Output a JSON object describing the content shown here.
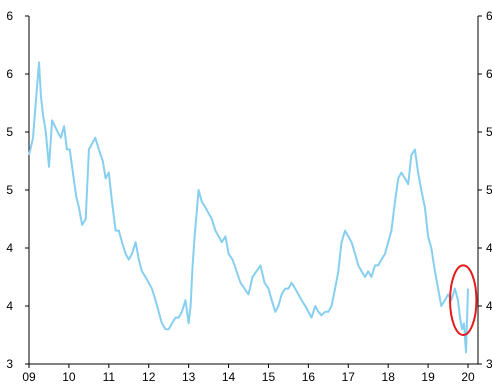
{
  "chart_data": {
    "type": "line",
    "title": "",
    "xlabel": "",
    "ylabel": "",
    "xlim": [
      2009.0,
      2020.25
    ],
    "ylim": [
      3.0,
      6.0
    ],
    "grid": false,
    "legend": "none",
    "x_tick_labels": [
      "09",
      "10",
      "11",
      "12",
      "13",
      "14",
      "15",
      "16",
      "17",
      "18",
      "19",
      "20"
    ],
    "x_tick_values": [
      2009.0,
      2010.0,
      2011.0,
      2012.0,
      2013.0,
      2014.0,
      2015.0,
      2016.0,
      2017.0,
      2018.0,
      2019.0,
      2020.0
    ],
    "y_tick_labels_left": [
      "3",
      "4",
      "4",
      "5",
      "5",
      "6",
      "6"
    ],
    "y_tick_labels_right": [
      "3",
      "4",
      "4",
      "5",
      "5",
      "6",
      "6"
    ],
    "y_tick_values": [
      3.0,
      3.5,
      4.0,
      4.5,
      5.0,
      5.5,
      6.0
    ],
    "series": [
      {
        "color": "#87cff0",
        "x": [
          2009.0,
          2009.1,
          2009.18,
          2009.25,
          2009.3,
          2009.35,
          2009.42,
          2009.5,
          2009.58,
          2009.65,
          2009.72,
          2009.8,
          2009.88,
          2009.95,
          2010.02,
          2010.1,
          2010.18,
          2010.25,
          2010.33,
          2010.42,
          2010.5,
          2010.58,
          2010.66,
          2010.75,
          2010.85,
          2010.92,
          2011.0,
          2011.08,
          2011.17,
          2011.25,
          2011.33,
          2011.42,
          2011.5,
          2011.58,
          2011.67,
          2011.75,
          2011.83,
          2011.92,
          2012.0,
          2012.08,
          2012.17,
          2012.25,
          2012.33,
          2012.42,
          2012.5,
          2012.58,
          2012.67,
          2012.75,
          2012.83,
          2012.92,
          2013.0,
          2013.05,
          2013.1,
          2013.15,
          2013.2,
          2013.25,
          2013.33,
          2013.42,
          2013.5,
          2013.58,
          2013.67,
          2013.75,
          2013.83,
          2013.92,
          2014.0,
          2014.1,
          2014.2,
          2014.3,
          2014.4,
          2014.5,
          2014.6,
          2014.7,
          2014.8,
          2014.9,
          2015.0,
          2015.08,
          2015.17,
          2015.25,
          2015.33,
          2015.42,
          2015.5,
          2015.58,
          2015.67,
          2015.75,
          2015.83,
          2015.92,
          2016.0,
          2016.08,
          2016.17,
          2016.25,
          2016.33,
          2016.42,
          2016.5,
          2016.58,
          2016.67,
          2016.75,
          2016.83,
          2016.92,
          2017.0,
          2017.08,
          2017.17,
          2017.25,
          2017.33,
          2017.42,
          2017.5,
          2017.58,
          2017.67,
          2017.75,
          2017.83,
          2017.92,
          2018.0,
          2018.08,
          2018.17,
          2018.25,
          2018.33,
          2018.42,
          2018.5,
          2018.58,
          2018.67,
          2018.75,
          2018.83,
          2018.92,
          2019.0,
          2019.08,
          2019.17,
          2019.25,
          2019.33,
          2019.42,
          2019.5,
          2019.58,
          2019.67,
          2019.75,
          2019.8,
          2019.85,
          2019.9,
          2019.95,
          2020.0
        ],
        "values": [
          4.8,
          4.95,
          5.3,
          5.6,
          5.3,
          5.15,
          5.0,
          4.7,
          5.1,
          5.05,
          5.0,
          4.95,
          5.05,
          4.85,
          4.85,
          4.65,
          4.45,
          4.35,
          4.2,
          4.25,
          4.85,
          4.9,
          4.95,
          4.85,
          4.75,
          4.6,
          4.65,
          4.4,
          4.15,
          4.15,
          4.05,
          3.95,
          3.9,
          3.95,
          4.05,
          3.9,
          3.8,
          3.75,
          3.7,
          3.65,
          3.55,
          3.45,
          3.35,
          3.3,
          3.3,
          3.35,
          3.4,
          3.4,
          3.45,
          3.55,
          3.35,
          3.5,
          3.85,
          4.1,
          4.3,
          4.5,
          4.4,
          4.35,
          4.3,
          4.25,
          4.15,
          4.1,
          4.05,
          4.1,
          3.95,
          3.9,
          3.8,
          3.7,
          3.65,
          3.6,
          3.75,
          3.8,
          3.85,
          3.7,
          3.65,
          3.55,
          3.45,
          3.5,
          3.6,
          3.65,
          3.65,
          3.7,
          3.65,
          3.6,
          3.55,
          3.5,
          3.45,
          3.4,
          3.5,
          3.45,
          3.42,
          3.45,
          3.45,
          3.5,
          3.65,
          3.8,
          4.05,
          4.15,
          4.1,
          4.05,
          3.95,
          3.85,
          3.8,
          3.75,
          3.8,
          3.75,
          3.85,
          3.85,
          3.9,
          3.95,
          4.05,
          4.15,
          4.4,
          4.6,
          4.65,
          4.6,
          4.55,
          4.8,
          4.85,
          4.65,
          4.5,
          4.35,
          4.1,
          4.0,
          3.8,
          3.65,
          3.5,
          3.55,
          3.6,
          3.55,
          3.65,
          3.55,
          3.4,
          3.3,
          3.35,
          3.1,
          3.65
        ]
      }
    ],
    "annotations": [
      {
        "type": "ellipse",
        "color": "#e41a1c",
        "x_center": 2019.88,
        "y_center": 3.55,
        "x_radius": 0.33,
        "y_radius": 0.3
      }
    ]
  }
}
